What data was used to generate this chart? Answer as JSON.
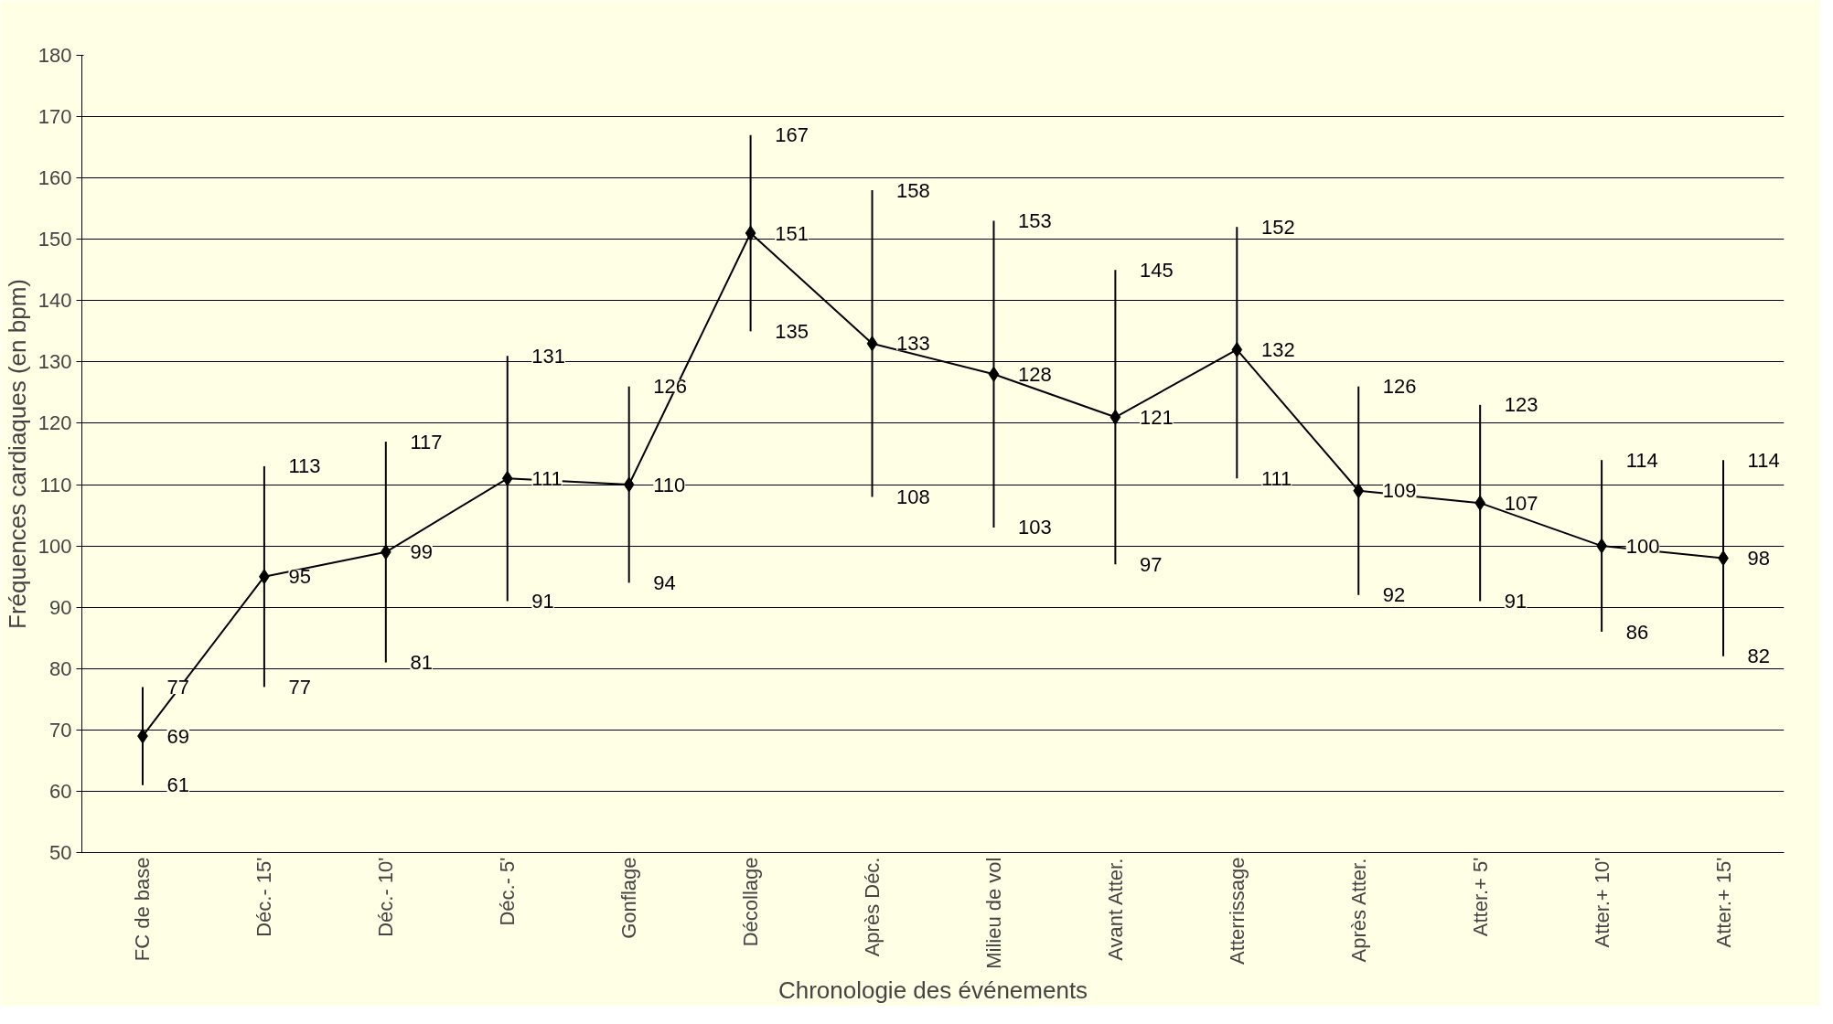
{
  "chart_data": {
    "type": "line",
    "xlabel": "Chronologie des événements",
    "ylabel": "Fréquences cardiaques (en bpm)",
    "categories": [
      "FC de base",
      "Déc.- 15'",
      "Déc.- 10'",
      "Déc.- 5'",
      "Gonflage",
      "Décollage",
      "Après Déc.",
      "Milieu de vol",
      "Avant Atter.",
      "Atterrissage",
      "Après Atter.",
      "Atter.+ 5'",
      "Atter.+ 10'",
      "Atter.+ 15'"
    ],
    "series": [
      {
        "color": "#000000",
        "values": [
          69,
          95,
          99,
          111,
          110,
          151,
          133,
          128,
          121,
          132,
          109,
          107,
          100,
          98
        ],
        "errors": [
          [
            61,
            77
          ],
          [
            77,
            113
          ],
          [
            81,
            117
          ],
          [
            91,
            131
          ],
          [
            94,
            126
          ],
          [
            135,
            167
          ],
          [
            108,
            158
          ],
          [
            103,
            153
          ],
          [
            97,
            145
          ],
          [
            111,
            152
          ],
          [
            92,
            126
          ],
          [
            91,
            123
          ],
          [
            86,
            114
          ],
          [
            82,
            114
          ]
        ]
      }
    ],
    "ylim": [
      50,
      180
    ],
    "yticks": [
      50,
      60,
      70,
      80,
      90,
      100,
      110,
      120,
      130,
      140,
      150,
      160,
      170,
      180
    ],
    "annotations": [
      {
        "text": "77",
        "x": "FC de base",
        "y": 77
      },
      {
        "text": "61",
        "x": "FC de base",
        "y": 61
      },
      {
        "text": "113",
        "x": "Déc.- 15'",
        "y": 113
      },
      {
        "text": "77",
        "x": "Déc.- 15'",
        "y": 77
      },
      {
        "text": "117",
        "x": "Déc.- 10'",
        "y": 117
      },
      {
        "text": "81",
        "x": "Déc.- 10'",
        "y": 81
      },
      {
        "text": "131",
        "x": "Déc.- 5'",
        "y": 131
      },
      {
        "text": "91",
        "x": "Déc.- 5'",
        "y": 91
      },
      {
        "text": "126",
        "x": "Gonflage",
        "y": 126
      },
      {
        "text": "94",
        "x": "Gonflage",
        "y": 94
      },
      {
        "text": "167",
        "x": "Décollage",
        "y": 167
      },
      {
        "text": "135",
        "x": "Décollage",
        "y": 135
      },
      {
        "text": "158",
        "x": "Après Déc.",
        "y": 158
      },
      {
        "text": "108",
        "x": "Après Déc.",
        "y": 108
      },
      {
        "text": "153",
        "x": "Milieu de vol",
        "y": 153
      },
      {
        "text": "103",
        "x": "Milieu de vol",
        "y": 103
      },
      {
        "text": "145",
        "x": "Avant Atter.",
        "y": 145
      },
      {
        "text": "97",
        "x": "Avant Atter.",
        "y": 97
      },
      {
        "text": "152",
        "x": "Atterrissage",
        "y": 152
      },
      {
        "text": "111",
        "x": "Atterrissage",
        "y": 111
      },
      {
        "text": "126",
        "x": "Après Atter.",
        "y": 126
      },
      {
        "text": "92",
        "x": "Après Atter.",
        "y": 92
      },
      {
        "text": "123",
        "x": "Atter.+ 5'",
        "y": 123
      },
      {
        "text": "91",
        "x": "Atter.+ 5'",
        "y": 91
      },
      {
        "text": "114",
        "x": "Atter.+ 10'",
        "y": 114
      },
      {
        "text": "86",
        "x": "Atter.+ 10'",
        "y": 86
      },
      {
        "text": "114",
        "x": "Atter.+ 15'",
        "y": 114
      },
      {
        "text": "82",
        "x": "Atter.+ 15'",
        "y": 82
      }
    ],
    "grid": "y",
    "marker": "diamond",
    "line_style": "solid",
    "data_labels": true
  }
}
